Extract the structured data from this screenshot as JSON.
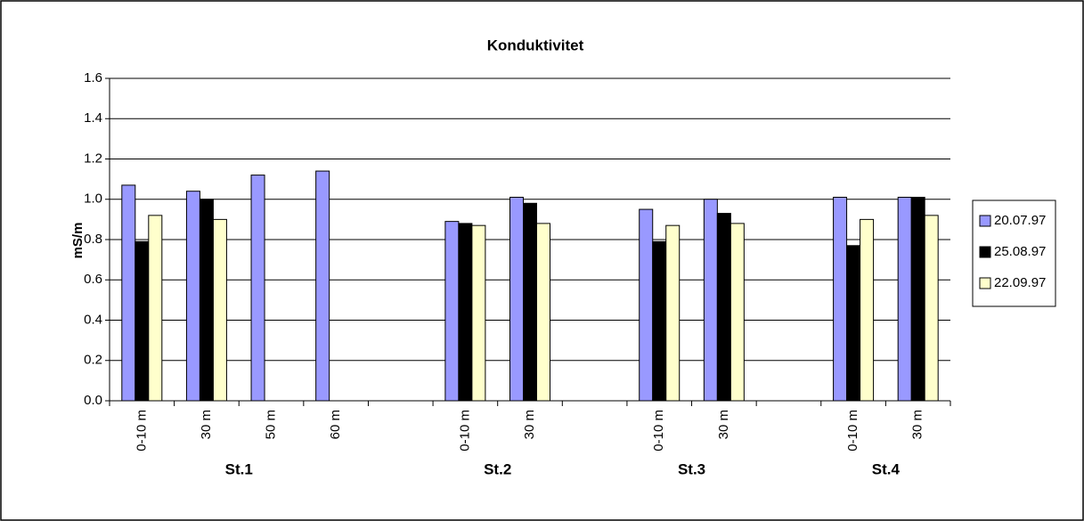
{
  "chart_data": {
    "type": "bar",
    "title": "Konduktivitet",
    "y_label": "mS/m",
    "groups": [
      {
        "name": "St.1",
        "categories": [
          "0-10 m",
          "30 m",
          "50 m",
          "60 m",
          null
        ]
      },
      {
        "name": "St.2",
        "categories": [
          "0-10 m",
          "30 m",
          null
        ]
      },
      {
        "name": "St.3",
        "categories": [
          "0-10 m",
          "30 m",
          null
        ]
      },
      {
        "name": "St.4",
        "categories": [
          "0-10 m",
          "30 m"
        ]
      }
    ],
    "series": [
      {
        "name": "20.07.97",
        "color": "#9999ff",
        "values": [
          1.07,
          1.04,
          1.12,
          1.14,
          null,
          0.89,
          1.01,
          null,
          0.95,
          1.0,
          null,
          1.01,
          1.01
        ]
      },
      {
        "name": "25.08.97",
        "color": "#000000",
        "values": [
          0.79,
          1.0,
          null,
          null,
          null,
          0.88,
          0.98,
          null,
          0.79,
          0.93,
          null,
          0.77,
          1.01
        ]
      },
      {
        "name": "22.09.97",
        "color": "#ffffcc",
        "values": [
          0.92,
          0.9,
          null,
          null,
          null,
          0.87,
          0.88,
          null,
          0.87,
          0.88,
          null,
          0.9,
          0.92
        ]
      }
    ],
    "ylim": [
      0,
      1.6
    ],
    "yticks": [
      {
        "value": 0,
        "label": "0.0"
      },
      0.2,
      0.4,
      0.6,
      0.8,
      {
        "value": 1,
        "label": "1.0"
      },
      1.2,
      1.4,
      1.6
    ],
    "grid": true,
    "legend": "right"
  }
}
